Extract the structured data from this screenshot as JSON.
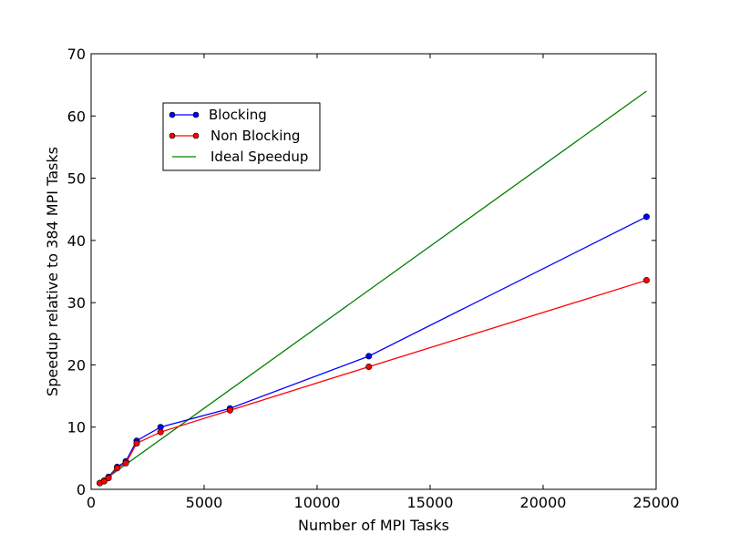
{
  "chart_data": {
    "type": "line",
    "title": "",
    "xlabel": "Number of MPI Tasks",
    "ylabel": "Speedup relative to 384 MPI Tasks",
    "xlim": [
      0,
      25000
    ],
    "ylim": [
      0,
      70
    ],
    "xticks": [
      0,
      5000,
      10000,
      15000,
      20000,
      25000
    ],
    "yticks": [
      0,
      10,
      20,
      30,
      40,
      50,
      60,
      70
    ],
    "legend_position": "upper-left",
    "grid": false,
    "series": [
      {
        "name": "Blocking",
        "color": "#0000ff",
        "marker": "circle",
        "x": [
          384,
          576,
          768,
          1152,
          1536,
          2016,
          3072,
          6144,
          12288,
          24576
        ],
        "y": [
          1.0,
          1.4,
          2.0,
          3.6,
          4.5,
          7.8,
          10.0,
          13.0,
          21.4,
          43.8
        ]
      },
      {
        "name": "Non Blocking",
        "color": "#ff0000",
        "marker": "circle",
        "x": [
          384,
          576,
          768,
          1152,
          1536,
          2016,
          3072,
          6144,
          12288,
          24576
        ],
        "y": [
          1.0,
          1.3,
          1.8,
          3.4,
          4.2,
          7.4,
          9.2,
          12.7,
          19.7,
          33.6
        ]
      },
      {
        "name": "Ideal Speedup",
        "color": "#008000",
        "marker": "none",
        "x": [
          384,
          24576
        ],
        "y": [
          1.0,
          64.0
        ]
      }
    ]
  }
}
